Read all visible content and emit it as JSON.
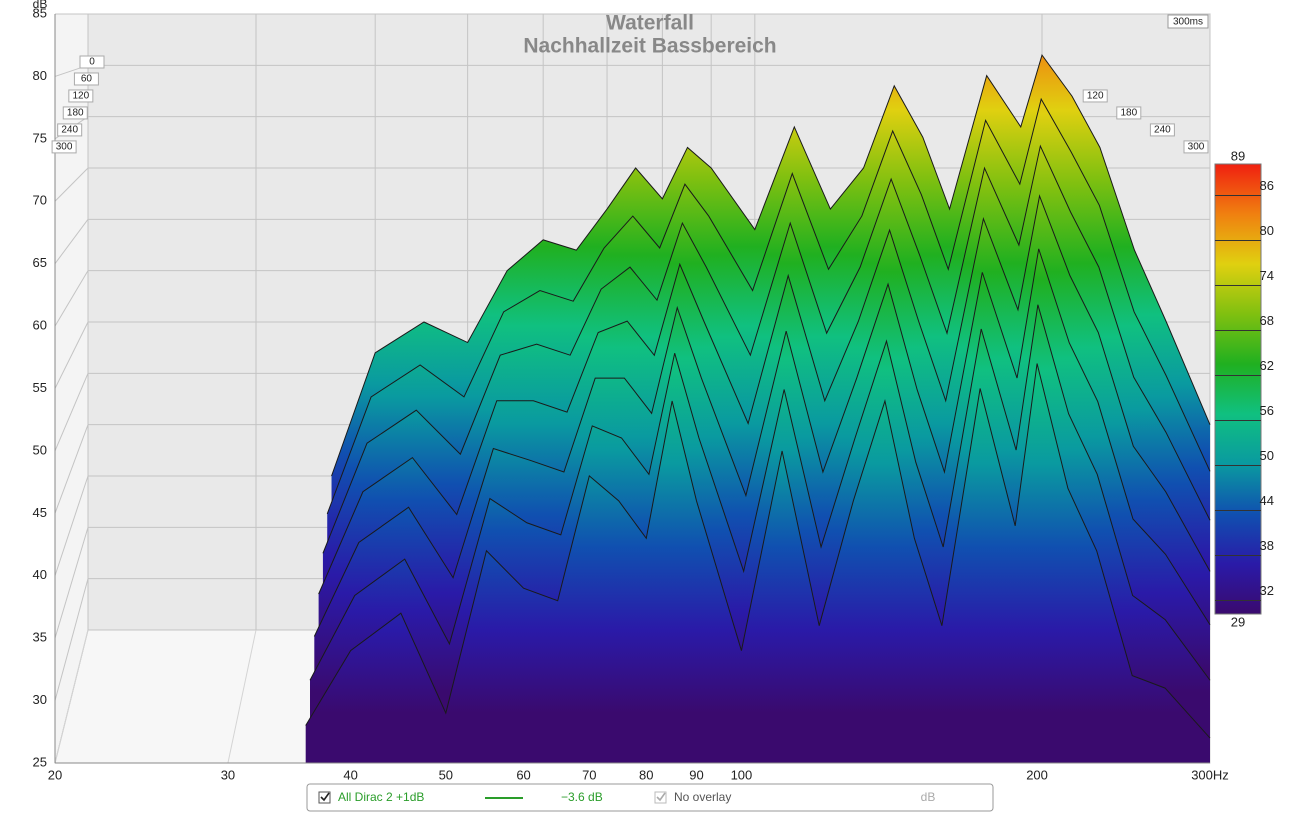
{
  "chart_data": {
    "type": "waterfall",
    "title": "Waterfall",
    "subtitle": "Nachhallzeit Bassbereich",
    "y_label": "dB",
    "xlim": [
      20,
      300
    ],
    "xticks": [
      20,
      30,
      40,
      50,
      60,
      70,
      80,
      90,
      100,
      200,
      {
        "value": 300,
        "label": "300Hz"
      }
    ],
    "x_log": true,
    "ylim": [
      25,
      85
    ],
    "yticks": [
      25,
      30,
      35,
      40,
      45,
      50,
      55,
      60,
      65,
      70,
      75,
      80,
      85
    ],
    "zlim": [
      0,
      300
    ],
    "zticks": [
      0,
      60,
      120,
      180,
      240,
      300
    ],
    "z_end_label": "300ms",
    "clim": [
      29,
      89
    ],
    "cticks": [
      32,
      38,
      44,
      50,
      56,
      62,
      68,
      74,
      80,
      86
    ],
    "colormap": [
      "#3a0a6e",
      "#2a1aa8",
      "#1050b0",
      "#0a9aa0",
      "#10c080",
      "#20b020",
      "#80c010",
      "#e0d010",
      "#f08010",
      "#f02010"
    ],
    "x": [
      36,
      40,
      45,
      50,
      55,
      60,
      65,
      70,
      75,
      80,
      85,
      90,
      100,
      110,
      120,
      130,
      140,
      150,
      160,
      175,
      190,
      200,
      215,
      230,
      250,
      270,
      300
    ],
    "slices": [
      {
        "time": 0,
        "values": [
          40,
          52,
          55,
          53,
          60,
          63,
          62,
          66,
          70,
          67,
          72,
          70,
          64,
          74,
          66,
          70,
          78,
          73,
          66,
          79,
          74,
          81,
          77,
          72,
          62,
          55,
          45
        ]
      },
      {
        "time": 50,
        "values": [
          38,
          49,
          52,
          49,
          57,
          59,
          58,
          63,
          66,
          63,
          69,
          66,
          59,
          70,
          61,
          66,
          74,
          68,
          61,
          75,
          69,
          77,
          72,
          67,
          57,
          51,
          42
        ]
      },
      {
        "time": 100,
        "values": [
          36,
          46,
          49,
          45,
          54,
          55,
          54,
          60,
          62,
          59,
          66,
          62,
          54,
          66,
          56,
          62,
          70,
          63,
          56,
          71,
          64,
          73,
          67,
          62,
          52,
          47,
          39
        ]
      },
      {
        "time": 150,
        "values": [
          34,
          43,
          46,
          41,
          51,
          51,
          50,
          57,
          58,
          55,
          63,
          58,
          49,
          62,
          51,
          58,
          66,
          58,
          51,
          67,
          59,
          69,
          62,
          57,
          47,
          43,
          36
        ]
      },
      {
        "time": 200,
        "values": [
          32,
          40,
          43,
          37,
          48,
          47,
          46,
          54,
          54,
          51,
          60,
          54,
          44,
          58,
          46,
          54,
          62,
          53,
          46,
          63,
          54,
          65,
          57,
          52,
          42,
          39,
          33
        ]
      },
      {
        "time": 250,
        "values": [
          30,
          37,
          40,
          33,
          45,
          43,
          42,
          51,
          50,
          47,
          57,
          50,
          39,
          54,
          41,
          50,
          58,
          48,
          41,
          59,
          49,
          61,
          52,
          47,
          37,
          35,
          30
        ]
      },
      {
        "time": 300,
        "values": [
          28,
          34,
          37,
          29,
          42,
          39,
          38,
          48,
          46,
          43,
          54,
          46,
          34,
          50,
          36,
          46,
          54,
          43,
          36,
          55,
          44,
          57,
          47,
          42,
          32,
          31,
          27
        ]
      }
    ],
    "legend": {
      "series_name": "All Dirac 2 +1dB",
      "series_color": "#2a9d2a",
      "offset": "−3.6 dB",
      "overlay": "No overlay",
      "unit": "dB"
    }
  }
}
